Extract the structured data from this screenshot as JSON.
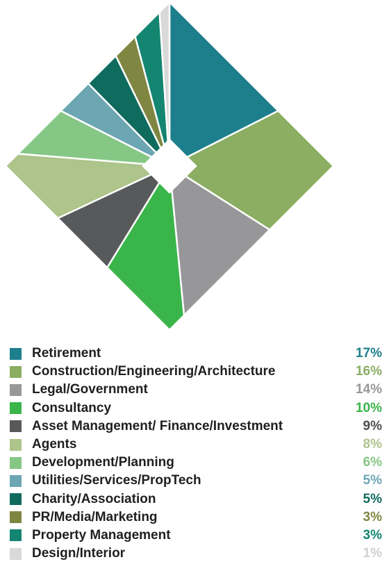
{
  "chart_data": {
    "type": "pie",
    "categories": [
      "Retirement",
      "Construction/Engineering/Architecture",
      "Legal/Government",
      "Consultancy",
      "Asset Management/ Finance/Investment",
      "Agents",
      "Development/Planning",
      "Utilities/Services/PropTech",
      "Charity/Association",
      "PR/Media/Marketing",
      "Property Management",
      "Design/Interior"
    ],
    "values": [
      17,
      16,
      14,
      10,
      9,
      8,
      6,
      5,
      5,
      3,
      3,
      1
    ],
    "value_labels": [
      "17%",
      "16%",
      "14%",
      "10%",
      "9%",
      "8%",
      "6%",
      "5%",
      "5%",
      "3%",
      "3%",
      "1%"
    ],
    "colors": [
      "#1e7f8c",
      "#8bae62",
      "#97979a",
      "#3ab54a",
      "#58595b",
      "#adc48a",
      "#86c786",
      "#6da6b3",
      "#0f6b5e",
      "#7f8641",
      "#138570",
      "#d9d9d9"
    ],
    "label_colors": [
      "#1e7f8c",
      "#8bae62",
      "#97979a",
      "#3ab54a",
      "#4d4e50",
      "#adc48a",
      "#86c786",
      "#6da6b3",
      "#0f6b5e",
      "#7f8641",
      "#138570",
      "#d0d0d0"
    ],
    "shape": "diamond",
    "legend_position": "bottom"
  }
}
